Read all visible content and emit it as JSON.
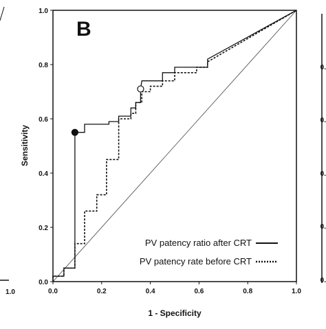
{
  "panel_label": "B",
  "colors": {
    "line": "#111111",
    "diagonal": "#555555",
    "background": "#ffffff"
  },
  "neighbor_panels": {
    "left_tick_x": "1.0",
    "right_tick_labels": [
      "0.",
      "0.",
      "0.",
      "0.",
      "0."
    ]
  },
  "chart_data": {
    "type": "line",
    "title": "",
    "xlabel": "1 - Specificity",
    "ylabel": "Sensitivity",
    "xlim": [
      0,
      1
    ],
    "ylim": [
      0,
      1
    ],
    "x_ticks": [
      "0.0",
      "0.2",
      "0.4",
      "0.6",
      "0.8",
      "1.0"
    ],
    "y_ticks": [
      "0.0",
      "0.2",
      "0.4",
      "0.6",
      "0.8",
      "1.0"
    ],
    "grid": false,
    "legend_position": "bottom-right",
    "reference_line": {
      "from": [
        0,
        0
      ],
      "to": [
        1,
        1
      ],
      "style": "thin"
    },
    "series": [
      {
        "name": "PV patency ratio after CRT",
        "style": "solid",
        "points": [
          [
            0,
            0
          ],
          [
            0,
            0.02
          ],
          [
            0.045,
            0.02
          ],
          [
            0.045,
            0.05
          ],
          [
            0.09,
            0.05
          ],
          [
            0.09,
            0.55
          ],
          [
            0.13,
            0.55
          ],
          [
            0.13,
            0.58
          ],
          [
            0.23,
            0.58
          ],
          [
            0.23,
            0.59
          ],
          [
            0.27,
            0.59
          ],
          [
            0.27,
            0.61
          ],
          [
            0.32,
            0.61
          ],
          [
            0.32,
            0.64
          ],
          [
            0.34,
            0.64
          ],
          [
            0.34,
            0.66
          ],
          [
            0.36,
            0.66
          ],
          [
            0.36,
            0.71
          ],
          [
            0.365,
            0.74
          ],
          [
            0.45,
            0.74
          ],
          [
            0.45,
            0.77
          ],
          [
            0.5,
            0.77
          ],
          [
            0.5,
            0.79
          ],
          [
            0.635,
            0.79
          ],
          [
            0.635,
            0.82
          ],
          [
            1,
            1
          ]
        ],
        "marker": {
          "type": "filled-circle",
          "at": [
            0.09,
            0.55
          ]
        }
      },
      {
        "name": "PV patency rate before CRT",
        "style": "dotted",
        "points": [
          [
            0,
            0
          ],
          [
            0,
            0.02
          ],
          [
            0.045,
            0.02
          ],
          [
            0.045,
            0.05
          ],
          [
            0.09,
            0.05
          ],
          [
            0.09,
            0.14
          ],
          [
            0.13,
            0.14
          ],
          [
            0.13,
            0.26
          ],
          [
            0.18,
            0.26
          ],
          [
            0.18,
            0.32
          ],
          [
            0.22,
            0.32
          ],
          [
            0.22,
            0.45
          ],
          [
            0.27,
            0.45
          ],
          [
            0.27,
            0.6
          ],
          [
            0.32,
            0.6
          ],
          [
            0.32,
            0.62
          ],
          [
            0.34,
            0.62
          ],
          [
            0.34,
            0.66
          ],
          [
            0.365,
            0.66
          ],
          [
            0.365,
            0.7
          ],
          [
            0.4,
            0.7
          ],
          [
            0.4,
            0.72
          ],
          [
            0.45,
            0.72
          ],
          [
            0.45,
            0.74
          ],
          [
            0.5,
            0.74
          ],
          [
            0.5,
            0.77
          ],
          [
            0.59,
            0.77
          ],
          [
            0.59,
            0.79
          ],
          [
            0.635,
            0.79
          ],
          [
            0.635,
            0.81
          ],
          [
            1,
            1
          ]
        ],
        "marker": {
          "type": "open-circle",
          "at": [
            0.36,
            0.71
          ]
        }
      }
    ]
  }
}
